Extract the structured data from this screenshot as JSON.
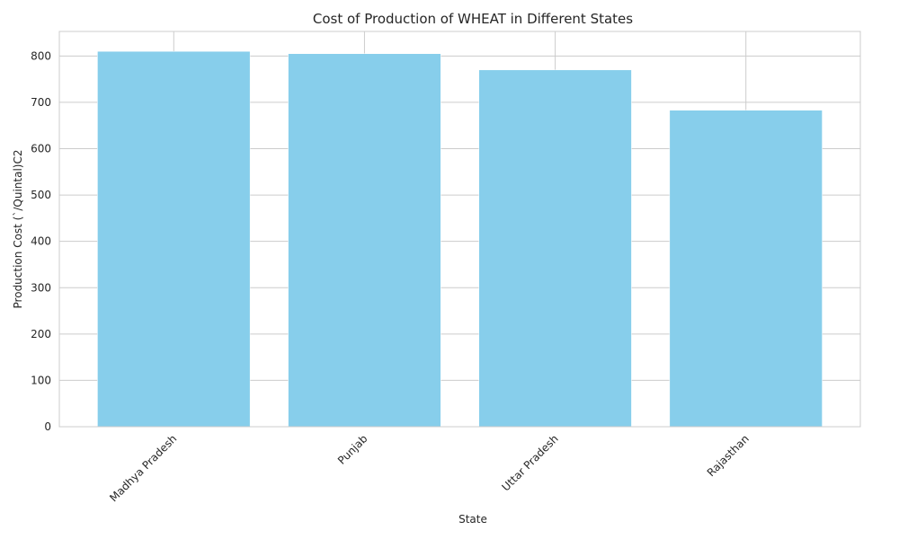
{
  "chart_data": {
    "type": "bar",
    "title": "Cost of Production of WHEAT in Different States",
    "xlabel": "State",
    "ylabel": "Production Cost (`/Quintal)C2",
    "categories": [
      "Madhya Pradesh",
      "Punjab",
      "Uttar Pradesh",
      "Rajasthan"
    ],
    "values": [
      810,
      805,
      770,
      683
    ],
    "ylim": [
      0,
      853
    ],
    "yticks": [
      0,
      100,
      200,
      300,
      400,
      500,
      600,
      700,
      800
    ],
    "grid": true,
    "bar_color": "#87ceeb"
  }
}
